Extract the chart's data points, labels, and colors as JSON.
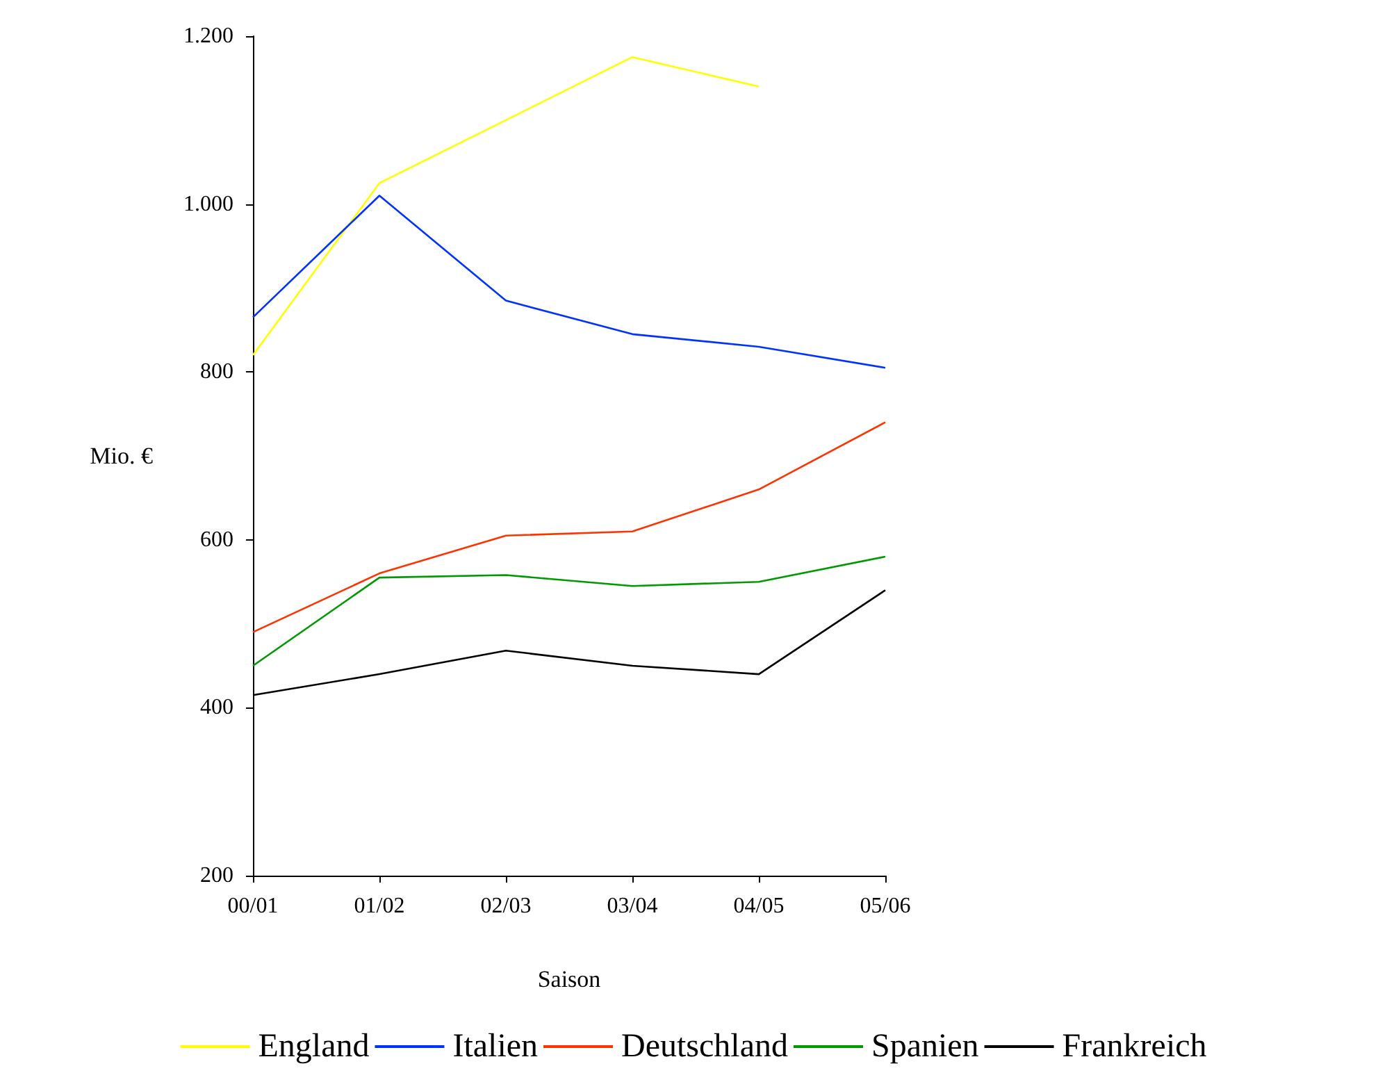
{
  "chart_data": {
    "type": "line",
    "xlabel": "Saison",
    "ylabel": "Mio. €",
    "categories": [
      "00/01",
      "01/02",
      "02/03",
      "03/04",
      "04/05",
      "05/06"
    ],
    "series": [
      {
        "name": "England",
        "color": "#ffff00",
        "values": [
          820,
          1025,
          1100,
          1175,
          1140,
          null
        ]
      },
      {
        "name": "Italien",
        "color": "#0033ff",
        "values": [
          865,
          1010,
          885,
          845,
          830,
          805
        ]
      },
      {
        "name": "Deutschland",
        "color": "#ff3300",
        "values": [
          490,
          560,
          605,
          610,
          660,
          740
        ]
      },
      {
        "name": "Spanien",
        "color": "#009900",
        "values": [
          450,
          555,
          558,
          545,
          550,
          580
        ]
      },
      {
        "name": "Frankreich",
        "color": "#000000",
        "values": [
          415,
          440,
          468,
          450,
          440,
          540
        ]
      }
    ],
    "ylim": [
      200,
      1200
    ],
    "yticks": [
      200,
      400,
      600,
      800,
      {
        "value": 1000,
        "label": "1.000"
      },
      {
        "value": 1200,
        "label": "1.200"
      }
    ],
    "grid": false,
    "legend": "bottom",
    "marker": "none",
    "line_style": "solid"
  }
}
